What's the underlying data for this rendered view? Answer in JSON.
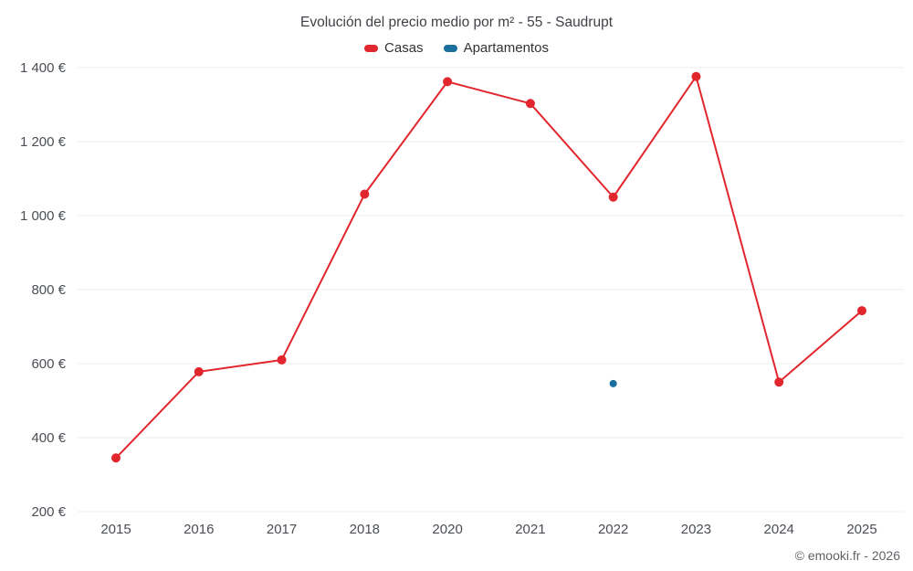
{
  "chart_data": {
    "type": "line",
    "title": "Evolución del precio medio por m² - 55 - Saudrupt",
    "categories": [
      "2015",
      "2016",
      "2017",
      "2018",
      "2020",
      "2021",
      "2022",
      "2023",
      "2024",
      "2025"
    ],
    "series": [
      {
        "name": "Casas",
        "color": "#e2262d",
        "marker_radius": 5,
        "values": [
          345,
          578,
          610,
          1058,
          1362,
          1303,
          1050,
          1376,
          550,
          743
        ]
      },
      {
        "name": "Apartamentos",
        "color": "#1a6f9c",
        "marker_radius": 4,
        "values": [
          null,
          null,
          null,
          null,
          null,
          null,
          546,
          null,
          null,
          null
        ]
      }
    ],
    "ylim": [
      200,
      1400
    ],
    "yticks": [
      {
        "value": 200,
        "label": "200 €"
      },
      {
        "value": 400,
        "label": "400 €"
      },
      {
        "value": 600,
        "label": "600 €"
      },
      {
        "value": 800,
        "label": "800 €"
      },
      {
        "value": 1000,
        "label": "1 000 €"
      },
      {
        "value": 1200,
        "label": "1 200 €"
      },
      {
        "value": 1400,
        "label": "1 400 €"
      }
    ],
    "grid": true,
    "legend_position": "top"
  },
  "footer": {
    "credit": "© emooki.fr - 2026"
  }
}
